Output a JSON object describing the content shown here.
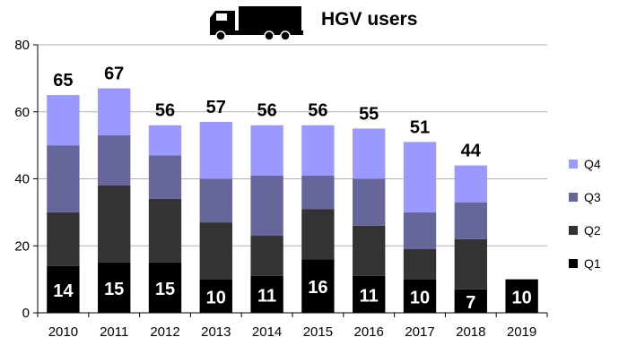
{
  "chart_data": {
    "type": "bar",
    "stacked": true,
    "title": "HGV users",
    "title_icon": "truck-icon",
    "categories": [
      "2010",
      "2011",
      "2012",
      "2013",
      "2014",
      "2015",
      "2016",
      "2017",
      "2018",
      "2019"
    ],
    "series": [
      {
        "name": "Q1",
        "color": "#000000",
        "values": [
          14,
          15,
          15,
          10,
          11,
          16,
          11,
          10,
          7,
          10
        ]
      },
      {
        "name": "Q2",
        "color": "#333333",
        "values": [
          16,
          23,
          19,
          17,
          12,
          15,
          15,
          9,
          15,
          null
        ]
      },
      {
        "name": "Q3",
        "color": "#66669A",
        "values": [
          20,
          15,
          13,
          13,
          18,
          10,
          14,
          11,
          11,
          null
        ]
      },
      {
        "name": "Q4",
        "color": "#9999FF",
        "values": [
          15,
          14,
          9,
          17,
          15,
          15,
          15,
          21,
          11,
          null
        ]
      }
    ],
    "totals": [
      65,
      67,
      56,
      57,
      56,
      56,
      55,
      51,
      44,
      null
    ],
    "ylim": [
      0,
      80
    ],
    "yticks": [
      0,
      20,
      40,
      60,
      80
    ],
    "grid": true,
    "legend_position": "right",
    "legend_order": [
      "Q4",
      "Q3",
      "Q2",
      "Q1"
    ],
    "data_labels": "Q1 values inside bars; totals above bars"
  }
}
